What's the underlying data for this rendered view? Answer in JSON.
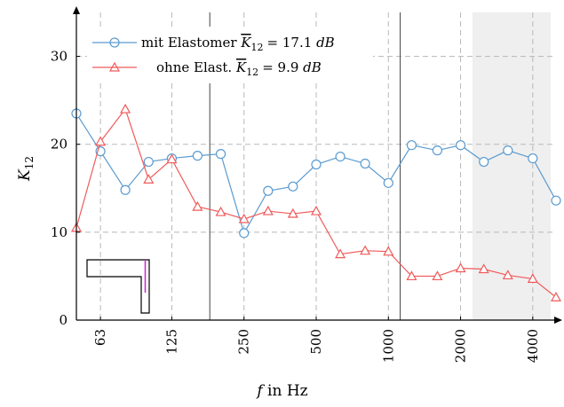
{
  "chart_data": {
    "type": "line",
    "xlabel": "f in Hz",
    "ylabel": "K12",
    "x_scale": "log",
    "xlim": [
      50,
      5000
    ],
    "ylim": [
      0,
      35
    ],
    "yticks": [
      0,
      10,
      20,
      30
    ],
    "xticks": [
      63,
      125,
      250,
      500,
      1000,
      2000,
      4000
    ],
    "xtick_labels": [
      "63",
      "125",
      "250",
      "500",
      "1000",
      "2000",
      "4000"
    ],
    "x": [
      50,
      63,
      80,
      100,
      125,
      160,
      200,
      250,
      315,
      400,
      500,
      630,
      800,
      1000,
      1250,
      1600,
      2000,
      2500,
      3150,
      4000,
      5000
    ],
    "grid": true,
    "legend_position": "top-left",
    "series": [
      {
        "name": "mit Elastomer K̄12 = 17.1 dB",
        "color": "#5b9bd0",
        "marker": "circle",
        "values": [
          23.5,
          19.2,
          14.8,
          18.0,
          18.4,
          18.7,
          18.9,
          9.9,
          14.7,
          15.2,
          17.7,
          18.6,
          17.8,
          15.6,
          19.9,
          19.3,
          19.9,
          18.0,
          19.3,
          18.4,
          13.6
        ]
      },
      {
        "name": "ohne Elast. K̄12 = 9.9 dB",
        "color": "#f05a5a",
        "marker": "triangle",
        "values": [
          10.5,
          20.3,
          24.0,
          16.0,
          18.3,
          12.9,
          12.3,
          11.5,
          12.4,
          12.1,
          12.4,
          7.5,
          7.9,
          7.8,
          5.0,
          5.0,
          5.9,
          5.8,
          5.1,
          4.7,
          2.6
        ]
      }
    ],
    "vertical_lines_at": [
      180,
      1120
    ],
    "shaded_x_range": [
      2240,
      5000
    ],
    "legend": {
      "entry1_label": "mit Elastomer",
      "entry1_symbol": "K",
      "entry1_subscript": "12",
      "entry1_value": "= 17.1",
      "entry1_unit": "dB",
      "entry2_label": "ohne Elast.",
      "entry2_symbol": "K",
      "entry2_subscript": "12",
      "entry2_value": "= 9.9",
      "entry2_unit": "dB"
    },
    "ylabel_parts": {
      "main": "K",
      "sub": "12"
    },
    "xlabel_parts": {
      "var": "f",
      "rest": " in Hz"
    }
  }
}
